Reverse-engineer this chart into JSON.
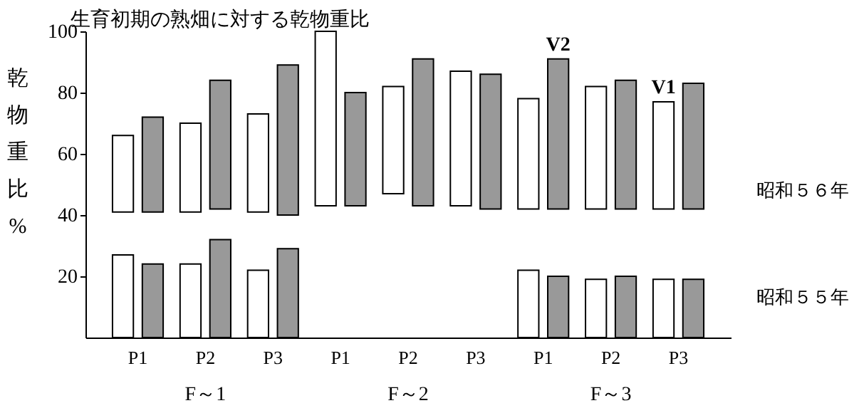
{
  "chart_data": {
    "type": "bar",
    "title": "生育初期の熟畑に対する乾物重比",
    "ylabel": "乾物重比 %",
    "categories": [
      "P1",
      "P2",
      "P3",
      "P1",
      "P2",
      "P3",
      "P1",
      "P2",
      "P3"
    ],
    "series": [
      {
        "name": "V1",
        "color": "#ffffff",
        "base": [
          41,
          41,
          41,
          43,
          47,
          43,
          42,
          42,
          42
        ],
        "values": [
          25,
          29,
          32,
          57,
          35,
          44,
          36,
          40,
          35
        ]
      },
      {
        "name": "V2",
        "color": "#999999",
        "base": [
          41,
          42,
          40,
          43,
          43,
          42,
          42,
          42,
          42
        ],
        "values": [
          31,
          42,
          49,
          37,
          48,
          44,
          49,
          42,
          41
        ]
      },
      {
        "color": "#ffffff",
        "values": [
          27,
          24,
          22,
          null,
          null,
          null,
          22,
          19,
          19
        ]
      },
      {
        "color": "#999999",
        "values": [
          24,
          32,
          29,
          null,
          null,
          null,
          20,
          20,
          19
        ]
      }
    ],
    "ylim": [
      0,
      100
    ],
    "yticks": [
      20,
      40,
      60,
      80,
      100
    ],
    "annotations": [
      "F～1",
      "F～2",
      "F～3",
      "昭和５６年",
      "昭和５５年"
    ]
  }
}
